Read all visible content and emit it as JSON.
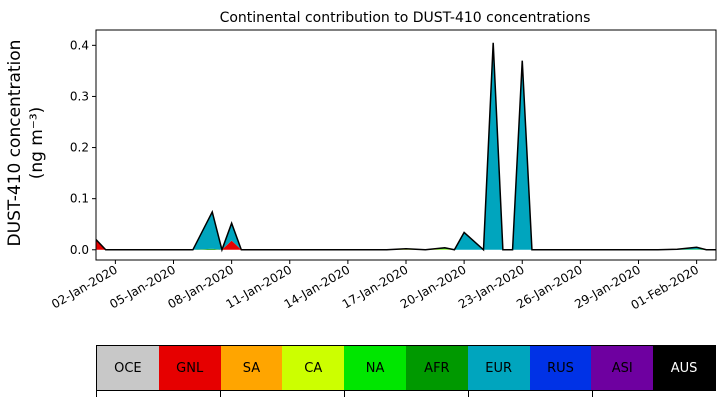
{
  "chart_data": {
    "type": "area",
    "title": "Continental contribution to DUST-410 concentrations",
    "ylabel": "DUST-410 concentration (ng m⁻³)",
    "xlabel": "",
    "ylim": [
      -0.02,
      0.43
    ],
    "yticks": [
      "0.0",
      "0.1",
      "0.2",
      "0.3",
      "0.4"
    ],
    "ytick_values": [
      0.0,
      0.1,
      0.2,
      0.3,
      0.4
    ],
    "xlim": [
      "2020-01-01",
      "2020-02-02"
    ],
    "xticks": [
      "02-Jan-2020",
      "05-Jan-2020",
      "08-Jan-2020",
      "11-Jan-2020",
      "14-Jan-2020",
      "17-Jan-2020",
      "20-Jan-2020",
      "23-Jan-2020",
      "26-Jan-2020",
      "29-Jan-2020",
      "01-Feb-2020"
    ],
    "xtick_dates": [
      "2020-01-02",
      "2020-01-05",
      "2020-01-08",
      "2020-01-11",
      "2020-01-14",
      "2020-01-17",
      "2020-01-20",
      "2020-01-23",
      "2020-01-26",
      "2020-01-29",
      "2020-02-01"
    ],
    "stacked": true,
    "x": [
      "2020-01-01",
      "2020-01-01T12:00",
      "2020-01-02",
      "2020-01-03",
      "2020-01-04",
      "2020-01-05",
      "2020-01-06",
      "2020-01-07",
      "2020-01-07T12:00",
      "2020-01-08",
      "2020-01-08T12:00",
      "2020-01-09",
      "2020-01-10",
      "2020-01-11",
      "2020-01-12",
      "2020-01-13",
      "2020-01-14",
      "2020-01-15",
      "2020-01-16",
      "2020-01-17",
      "2020-01-18",
      "2020-01-19",
      "2020-01-19T12:00",
      "2020-01-20",
      "2020-01-21",
      "2020-01-21T12:00",
      "2020-01-22",
      "2020-01-22T12:00",
      "2020-01-23",
      "2020-01-23T12:00",
      "2020-01-24",
      "2020-01-24T12:00",
      "2020-01-25",
      "2020-01-26",
      "2020-01-27",
      "2020-01-28",
      "2020-01-29",
      "2020-01-30",
      "2020-01-31",
      "2020-02-01",
      "2020-02-01T12:00",
      "2020-02-02"
    ],
    "series": [
      {
        "name": "OCE",
        "color": "#c8c8c8",
        "values": [
          0,
          0,
          0,
          0,
          0,
          0,
          0,
          0,
          0,
          0,
          0,
          0,
          0,
          0,
          0,
          0,
          0,
          0,
          0,
          0,
          0,
          0,
          0,
          0,
          0,
          0,
          0,
          0,
          0,
          0,
          0,
          0,
          0,
          0,
          0,
          0,
          0,
          0,
          0,
          0,
          0,
          0
        ]
      },
      {
        "name": "GNL",
        "color": "#e60000",
        "values": [
          0.02,
          0,
          0,
          0,
          0,
          0,
          0,
          0,
          0,
          0.018,
          0,
          0,
          0,
          0,
          0,
          0,
          0,
          0,
          0,
          0,
          0,
          0,
          0,
          0,
          0,
          0,
          0,
          0,
          0,
          0,
          0,
          0,
          0,
          0,
          0,
          0,
          0,
          0,
          0,
          0,
          0,
          0
        ]
      },
      {
        "name": "SA",
        "color": "#ffa500",
        "values": [
          0,
          0,
          0,
          0,
          0,
          0,
          0,
          0,
          0,
          0,
          0,
          0,
          0,
          0,
          0,
          0,
          0,
          0,
          0,
          0,
          0,
          0,
          0,
          0,
          0,
          0,
          0,
          0,
          0,
          0,
          0,
          0,
          0,
          0,
          0,
          0,
          0,
          0,
          0,
          0,
          0,
          0
        ]
      },
      {
        "name": "CA",
        "color": "#ccff00",
        "values": [
          0,
          0,
          0,
          0,
          0,
          0,
          0,
          0,
          0,
          0,
          0,
          0,
          0,
          0,
          0,
          0,
          0,
          0,
          0,
          0.002,
          0,
          0.001,
          0,
          0,
          0,
          0,
          0,
          0,
          0,
          0,
          0,
          0,
          0,
          0,
          0,
          0,
          0,
          0,
          0,
          0,
          0,
          0
        ]
      },
      {
        "name": "NA",
        "color": "#00e600",
        "values": [
          0,
          0,
          0,
          0,
          0,
          0,
          0,
          0,
          0,
          0,
          0,
          0,
          0,
          0,
          0,
          0,
          0,
          0,
          0,
          0,
          0,
          0.001,
          0,
          0,
          0,
          0,
          0,
          0,
          0,
          0,
          0,
          0,
          0,
          0,
          0,
          0,
          0,
          0,
          0,
          0.001,
          0,
          0
        ]
      },
      {
        "name": "AFR",
        "color": "#009900",
        "values": [
          0,
          0,
          0,
          0,
          0,
          0,
          0,
          0.002,
          0,
          0,
          0,
          0,
          0,
          0,
          0,
          0,
          0,
          0,
          0,
          0,
          0,
          0.001,
          0,
          0,
          0,
          0,
          0,
          0,
          0,
          0,
          0,
          0,
          0,
          0,
          0,
          0,
          0,
          0,
          0,
          0,
          0,
          0
        ]
      },
      {
        "name": "EUR",
        "color": "#00a5be",
        "values": [
          0,
          0,
          0,
          0,
          0,
          0,
          0,
          0.072,
          0,
          0.034,
          0,
          0,
          0,
          0,
          0,
          0,
          0,
          0,
          0,
          0,
          0,
          0.001,
          0,
          0.034,
          0,
          0.405,
          0,
          0,
          0.37,
          0,
          0,
          0,
          0,
          0,
          0,
          0,
          0,
          0,
          0.001,
          0.004,
          0,
          0
        ]
      },
      {
        "name": "RUS",
        "color": "#0032e6",
        "values": [
          0,
          0,
          0,
          0,
          0,
          0,
          0,
          0,
          0,
          0,
          0,
          0,
          0,
          0,
          0,
          0,
          0,
          0,
          0,
          0,
          0,
          0,
          0,
          0,
          0,
          0,
          0,
          0,
          0,
          0,
          0,
          0,
          0,
          0,
          0,
          0,
          0,
          0,
          0,
          0,
          0,
          0
        ]
      },
      {
        "name": "ASI",
        "color": "#6e00a0",
        "values": [
          0,
          0,
          0,
          0,
          0,
          0,
          0,
          0,
          0,
          0,
          0,
          0,
          0,
          0,
          0,
          0,
          0,
          0,
          0,
          0,
          0,
          0,
          0,
          0,
          0,
          0,
          0,
          0,
          0,
          0,
          0,
          0,
          0,
          0,
          0,
          0,
          0,
          0,
          0,
          0,
          0,
          0
        ]
      },
      {
        "name": "AUS",
        "color": "#000000",
        "values": [
          0,
          0,
          0,
          0,
          0,
          0,
          0,
          0,
          0,
          0,
          0,
          0,
          0,
          0,
          0,
          0,
          0,
          0,
          0,
          0,
          0,
          0,
          0,
          0,
          0,
          0,
          0,
          0,
          0,
          0,
          0,
          0,
          0,
          0,
          0,
          0,
          0,
          0,
          0,
          0,
          0,
          0
        ]
      }
    ],
    "grid": false,
    "legend_placement": "bottom"
  }
}
